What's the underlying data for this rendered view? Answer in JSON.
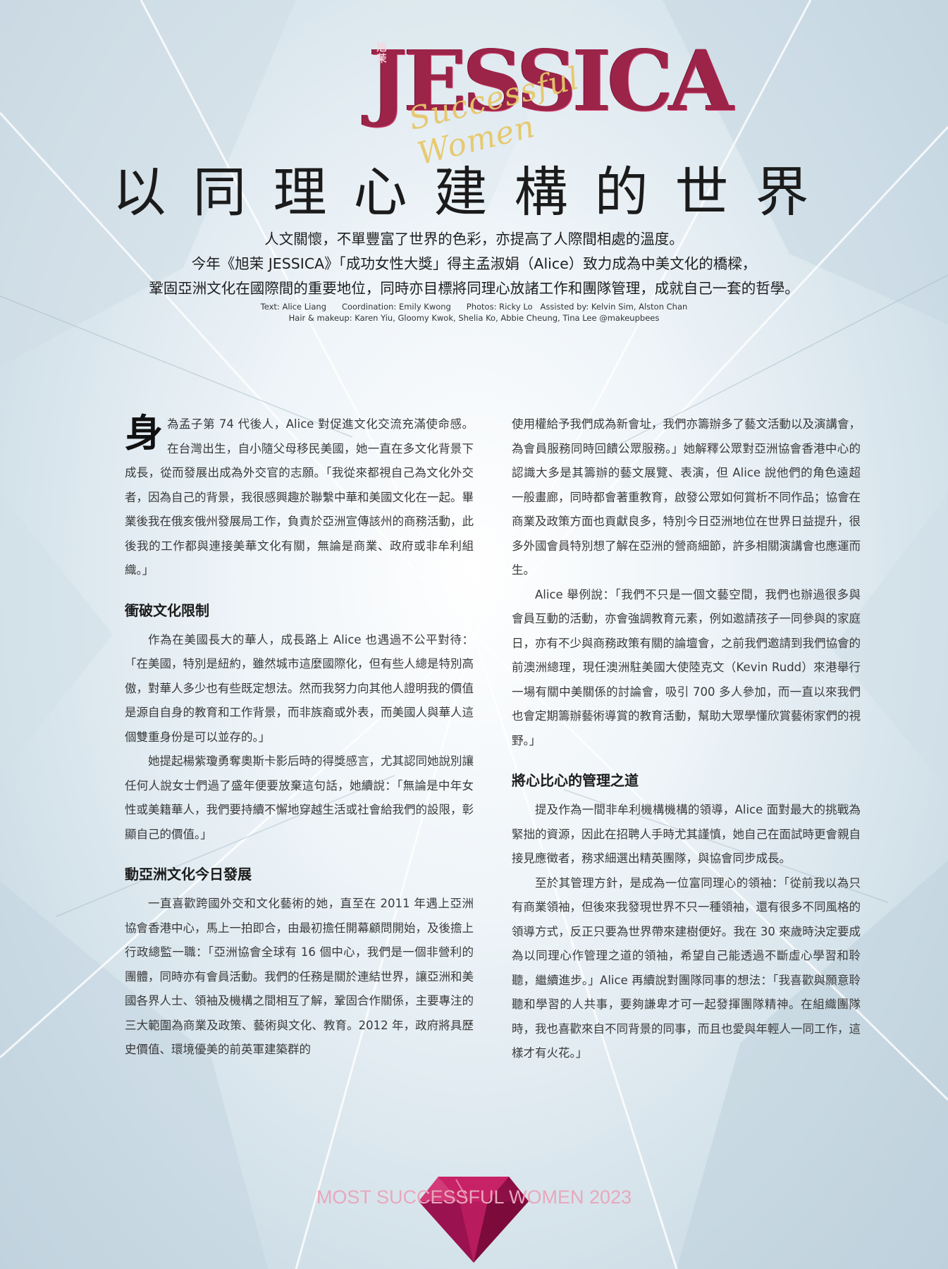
{
  "masthead": {
    "logo_text": "JESSICA",
    "logo_chinese": "旭茉",
    "logo_script": "Successful Women"
  },
  "headline": "以同理心建構的世界",
  "deck": [
    "人文關懷，不單豐富了世界的色彩，亦提高了人際間相處的溫度。",
    "今年《旭茉 JESSICA》「成功女性大獎」得主孟淑娟（Alice）致力成為中美文化的橋樑，",
    "鞏固亞洲文化在國際間的重要地位，同時亦目標將同理心放諸工作和團隊管理，成就自己一套的哲學。"
  ],
  "credits": {
    "line1": "Text: Alice Liang      Coordination: Emily Kwong      Photos: Ricky Lo   Assisted by: Kelvin Sim, Alston Chan",
    "line2": "Hair & makeup: Karen Yiu, Gloomy Kwok, Shelia Ko, Abbie Cheung, Tina Lee @makeupbees"
  },
  "article": {
    "dropcap": "身",
    "intro": "為孟子第 74 代後人，Alice 對促進文化交流充滿使命感。在台灣出生，自小隨父母移民美國，她一直在多文化背景下成長，從而發展出成為外交官的志願。「我從來都視自己為文化外交者，因為自己的背景，我很感興趣於聯繫中華和美國文化在一起。畢業後我在俄亥俄州發展局工作，負責於亞洲宣傳該州的商務活動，此後我的工作都與連接美華文化有關，無論是商業、政府或非牟利組織。」",
    "section1_title": "衝破文化限制",
    "section1_p1": "作為在美國長大的華人，成長路上 Alice 也遇過不公平對待：「在美國，特別是紐約，雖然城市這麼國際化，但有些人總是特別高傲，對華人多少也有些既定想法。然而我努力向其他人證明我的價值是源自自身的教育和工作背景，而非族裔或外表，而美國人與華人這個雙重身份是可以並存的。」",
    "section1_p2": "她提起楊紫瓊勇奪奧斯卡影后時的得獎感言，尤其認同她說別讓任何人說女士們過了盛年便要放棄這句話，她續說：「無論是中年女性或美籍華人，我們要持續不懈地穿越生活或社會給我們的設限，彰顯自己的價值。」",
    "section2_title": "動亞洲文化今日發展",
    "section2_p1": "一直喜歡跨國外交和文化藝術的她，直至在 2011 年遇上亞洲協會香港中心，馬上一拍即合，由最初擔任開幕顧問開始，及後擔上行政總監一職：「亞洲協會全球有 16 個中心，我們是一個非營利的團體，同時亦有會員活動。我們的任務是關於連結世界，讓亞洲和美國各界人士、領袖及機構之間相互了解，鞏固合作關係，主要專注的三大範圍為商業及政策、藝術與文化、教育。2012 年，政府將具歷史價值、環境優美的前英軍建築群的",
    "right_p1": "使用權給予我們成為新會址，我們亦籌辦多了藝文活動以及演講會，為會員服務同時回饋公眾服務。」她解釋公眾對亞洲協會香港中心的認識大多是其籌辦的藝文展覽、表演，但 Alice 說他們的角色遠超一般畫廊，同時都會著重教育，啟發公眾如何賞析不同作品；協會在商業及政策方面也貢獻良多，特別今日亞洲地位在世界日益提升，很多外國會員特別想了解在亞洲的營商細節，許多相關演講會也應運而生。",
    "right_p2": "Alice 舉例說：「我們不只是一個文藝空間，我們也辦過很多與會員互動的活動，亦會強調教育元素，例如邀請孩子一同參與的家庭日，亦有不少與商務政策有關的論壇會，之前我們邀請到我們協會的前澳洲總理，現任澳洲駐美國大使陸克文（Kevin Rudd）來港舉行一場有關中美關係的討論會，吸引 700 多人參加，而一直以來我們也會定期籌辦藝術導賞的教育活動，幫助大眾學懂欣賞藝術家們的視野。」",
    "section3_title": "將心比心的管理之道",
    "section3_p1": "提及作為一間非牟利機構機構的領導，Alice 面對最大的挑戰為緊拙的資源，因此在招聘人手時尤其謹慎，她自己在面試時更會親自接見應徵者，務求細選出精英團隊，與協會同步成長。",
    "section3_p2": "至於其管理方針，是成為一位富同理心的領袖：「從前我以為只有商業領袖，但後來我發現世界不只一種領袖，還有很多不同風格的領導方式，反正只要為世界帶來建樹便好。我在 30 來歲時決定要成為以同理心作管理之道的領袖，希望自己能透過不斷虛心學習和聆聽，繼續進步。」Alice 再續說對團隊同事的想法：「我喜歡與願意聆聽和學習的人共事，要夠謙卑才可一起發揮團隊精神。在組織團隊時，我也喜歡來自不同背景的同事，而且也愛與年輕人一同工作，這樣才有火花。」"
  },
  "footer": {
    "text": "MOST SUCCESSFUL WOMEN 2023"
  },
  "colors": {
    "brand": "#9b2448",
    "gold": "#e7c86a",
    "footer_text": "#e8a8bd",
    "gem": "#b0185a"
  }
}
